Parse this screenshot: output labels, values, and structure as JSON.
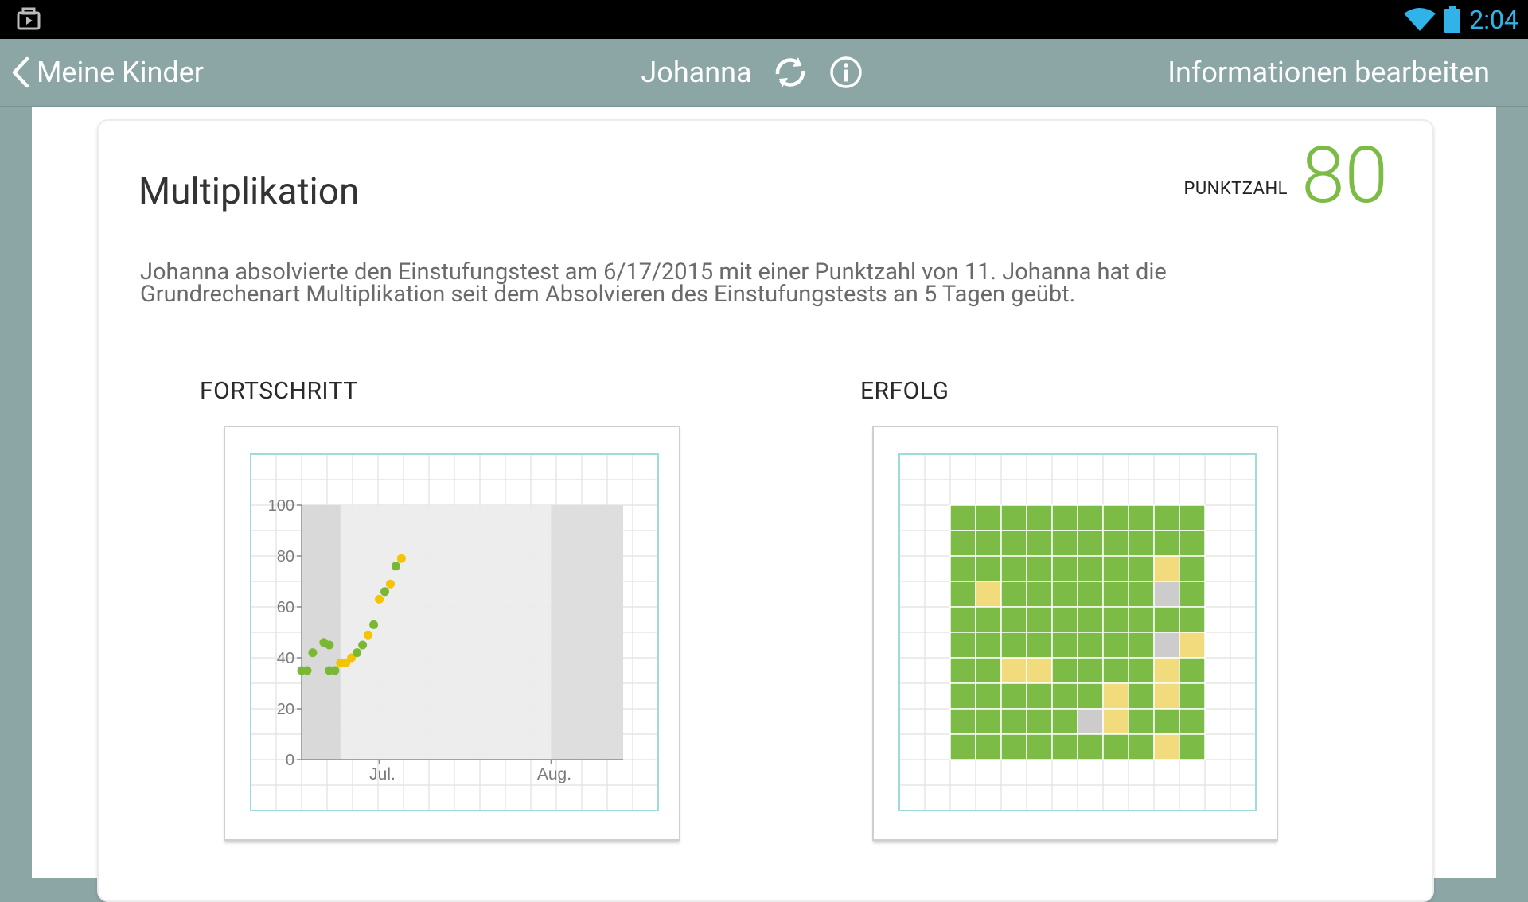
{
  "status_bar": {
    "time": "2:04",
    "icons": [
      "media-icon",
      "wifi-icon",
      "battery-icon"
    ]
  },
  "action_bar": {
    "back_label": "Meine Kinder",
    "title": "Johanna",
    "edit_label": "Informationen bearbeiten"
  },
  "card": {
    "title": "Multiplikation",
    "score_label": "PUNKTZAHL",
    "score_value": "80",
    "description": "Johanna absolvierte den Einstufungstest am 6/17/2015 mit einer Punktzahl von 11. Johanna hat die Grundrechenart Multiplikation seit dem Absolvieren des Einstufungstests an 5 Tagen geübt."
  },
  "progress": {
    "label": "FORTSCHRITT"
  },
  "success": {
    "label": "ERFOLG"
  },
  "colors": {
    "action_bar": "#8ba6a5",
    "score": "#7cbb46",
    "green": "#7cbb46",
    "yellow": "#f2db7c",
    "gray": "#cccccc",
    "point_green": "#7ab833",
    "point_yellow": "#f5c400",
    "grid_line": "#e1e1e1",
    "grid_border": "#9fdbd8"
  },
  "chart_data": [
    {
      "type": "scatter",
      "title": "FORTSCHRITT",
      "yticks": [
        "0",
        "20",
        "40",
        "60",
        "80",
        "100"
      ],
      "ylim": [
        0,
        100
      ],
      "xlabels": [
        "Jul.",
        "Aug."
      ],
      "points": [
        {
          "x": "2015-06-17",
          "y": 35,
          "color": "green"
        },
        {
          "x": "2015-06-18",
          "y": 35,
          "color": "green"
        },
        {
          "x": "2015-06-19",
          "y": 42,
          "color": "green"
        },
        {
          "x": "2015-06-21",
          "y": 46,
          "color": "green"
        },
        {
          "x": "2015-06-22",
          "y": 45,
          "color": "green"
        },
        {
          "x": "2015-06-22",
          "y": 35,
          "color": "green"
        },
        {
          "x": "2015-06-23",
          "y": 35,
          "color": "green"
        },
        {
          "x": "2015-06-24",
          "y": 38,
          "color": "yellow"
        },
        {
          "x": "2015-06-25",
          "y": 38,
          "color": "yellow"
        },
        {
          "x": "2015-06-26",
          "y": 40,
          "color": "yellow"
        },
        {
          "x": "2015-06-27",
          "y": 42,
          "color": "green"
        },
        {
          "x": "2015-06-28",
          "y": 45,
          "color": "green"
        },
        {
          "x": "2015-06-29",
          "y": 49,
          "color": "yellow"
        },
        {
          "x": "2015-06-30",
          "y": 53,
          "color": "green"
        },
        {
          "x": "2015-07-01",
          "y": 63,
          "color": "yellow"
        },
        {
          "x": "2015-07-02",
          "y": 66,
          "color": "green"
        },
        {
          "x": "2015-07-03",
          "y": 69,
          "color": "yellow"
        },
        {
          "x": "2015-07-04",
          "y": 76,
          "color": "green"
        },
        {
          "x": "2015-07-05",
          "y": 79,
          "color": "yellow"
        }
      ]
    },
    {
      "type": "heatmap",
      "title": "ERFOLG",
      "rows": 10,
      "cols": 10,
      "cells": [
        "GGGGGGGGGG",
        "GGGGGGGGGG",
        "GGGGGGGGYG",
        "GYGGGGGGSG",
        "GGGGGGGGGG",
        "GGGGGGGGSY",
        "GGYYGGGGYG",
        "GGGGGGYGYG",
        "GGGGGSYGGG",
        "GGGGGGGGYG"
      ],
      "legend": {
        "G": "green",
        "Y": "yellow",
        "S": "gray"
      }
    }
  ]
}
